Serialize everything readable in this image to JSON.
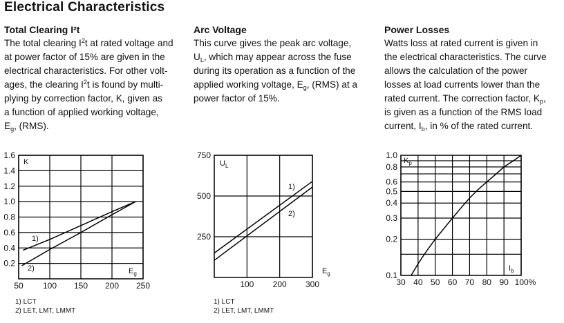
{
  "title": "Electrical Characteristics",
  "sections": [
    {
      "heading": "Total Clearing I²t",
      "lines": [
        [
          "The total clearing I",
          {
            "sup": "2"
          },
          "t at rated voltage and"
        ],
        [
          "at power factor of 15% are given in the"
        ],
        [
          "electrical characteristics. For other volt-"
        ],
        [
          "ages, the clearing I",
          {
            "sup": "2"
          },
          "t is found by multi-"
        ],
        [
          "plying by correction factor, K, given as"
        ],
        [
          "a function of applied working voltage,"
        ],
        [
          "E",
          {
            "sub": "g"
          },
          ", (RMS)."
        ]
      ]
    },
    {
      "heading": "Arc Voltage",
      "lines": [
        [
          "This curve gives the peak arc voltage,"
        ],
        [
          "U",
          {
            "sub": "L"
          },
          ", which may appear across the fuse"
        ],
        [
          "during its operation as a function of the"
        ],
        [
          "applied working voltage, E",
          {
            "sub": "g"
          },
          ", (RMS) at a"
        ],
        [
          "power factor of 15%."
        ]
      ]
    },
    {
      "heading": "Power Losses",
      "lines": [
        [
          "Watts loss at rated current is given in"
        ],
        [
          "the electrical characteristics. The curve"
        ],
        [
          "allows the calculation of the power"
        ],
        [
          "losses at load currents lower than the"
        ],
        [
          "rated current. The correction factor, K",
          {
            "sub": "p"
          },
          ","
        ],
        [
          "is given as a function of the RMS load"
        ],
        [
          "current, I",
          {
            "sub": "b"
          },
          ", in % of the rated current."
        ]
      ]
    }
  ],
  "footnotes": {
    "note1": "1) LCT",
    "note2": "2) LET, LMT, LMMT"
  },
  "chart_data": [
    {
      "type": "line",
      "ylabel": "K",
      "xlabel": "Eg",
      "xlim": [
        50,
        250
      ],
      "ylim": [
        0,
        1.6
      ],
      "xticks": [
        50,
        100,
        150,
        200,
        250
      ],
      "yticks": [
        0.2,
        0.4,
        0.6,
        0.8,
        1.0,
        1.2,
        1.4,
        1.6
      ],
      "ytick_labels": [
        "0.2",
        "0.4",
        "0.6",
        "0.8",
        "1.0",
        "1.2",
        "1.4",
        "1.6"
      ],
      "grid": true,
      "series": [
        {
          "name": "1)",
          "x": [
            57,
            100,
            150,
            200,
            238
          ],
          "y": [
            0.37,
            0.51,
            0.69,
            0.87,
            1.0
          ]
        },
        {
          "name": "2)",
          "x": [
            55,
            100,
            150,
            200,
            238
          ],
          "y": [
            0.17,
            0.38,
            0.6,
            0.83,
            1.0
          ]
        }
      ]
    },
    {
      "type": "line",
      "ylabel": "UL",
      "xlabel": "Eg",
      "xlim": [
        0,
        300
      ],
      "ylim": [
        0,
        750
      ],
      "xticks": [
        100,
        200,
        300
      ],
      "yticks": [
        250,
        500,
        750
      ],
      "grid": true,
      "series": [
        {
          "name": "1)",
          "x": [
            0,
            300
          ],
          "y": [
            150,
            590
          ]
        },
        {
          "name": "2)",
          "x": [
            0,
            300
          ],
          "y": [
            105,
            555
          ]
        }
      ]
    },
    {
      "type": "line",
      "ylabel": "Kp",
      "xlabel": "Ib",
      "xlim": [
        30,
        100
      ],
      "ylim": [
        0.1,
        1.0
      ],
      "yscale": "log",
      "xticks": [
        30,
        40,
        50,
        60,
        70,
        80,
        90,
        100
      ],
      "xtick_labels": [
        "30",
        "40",
        "50",
        "60",
        "70",
        "80",
        "90",
        "100%"
      ],
      "yticks": [
        0.1,
        0.2,
        0.3,
        0.4,
        0.5,
        0.6,
        0.8,
        1.0
      ],
      "ytick_labels": [
        "0.1",
        "0.2",
        "0.3",
        "0.4",
        "0.5",
        "0.6",
        "0.8",
        "1.0"
      ],
      "ygrid": [
        0.15,
        0.2,
        0.3,
        0.4,
        0.5,
        0.6,
        0.7,
        0.8,
        0.9
      ],
      "grid": true,
      "series": [
        {
          "x": [
            36,
            40,
            45,
            50,
            55,
            60,
            65,
            70,
            75,
            80,
            85,
            90,
            95,
            100
          ],
          "y": [
            0.1,
            0.125,
            0.16,
            0.2,
            0.245,
            0.3,
            0.365,
            0.44,
            0.52,
            0.6,
            0.69,
            0.8,
            0.89,
            1.0
          ]
        }
      ]
    }
  ]
}
